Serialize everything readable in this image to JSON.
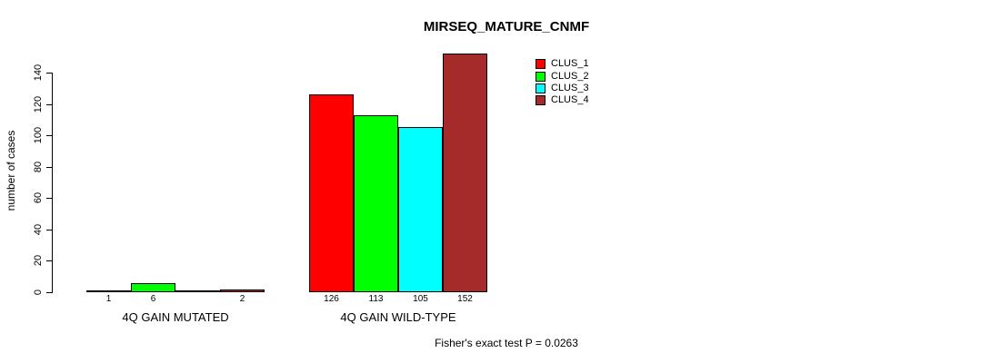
{
  "chart_data": {
    "type": "bar",
    "title": "MIRSEQ_MATURE_CNMF",
    "ylabel": "number of cases",
    "xlabel": "",
    "ylim": [
      0,
      140
    ],
    "yticks": [
      0,
      20,
      40,
      60,
      80,
      100,
      120,
      140
    ],
    "grid": false,
    "legend_position": "top-right",
    "categories": [
      "4Q GAIN MUTATED",
      "4Q GAIN WILD-TYPE"
    ],
    "series": [
      {
        "name": "CLUS_1",
        "color": "#FF0000",
        "values": [
          1,
          126
        ]
      },
      {
        "name": "CLUS_2",
        "color": "#00FF00",
        "values": [
          6,
          113
        ]
      },
      {
        "name": "CLUS_3",
        "color": "#00FFFF",
        "values": [
          0,
          105
        ]
      },
      {
        "name": "CLUS_4",
        "color": "#A52A2A",
        "values": [
          2,
          152
        ]
      }
    ],
    "groups": [
      {
        "label": "4Q GAIN MUTATED",
        "values": [
          1,
          6,
          0,
          2
        ],
        "bar_labels": [
          "1",
          "6",
          "",
          "2"
        ]
      },
      {
        "label": "4Q GAIN WILD-TYPE",
        "values": [
          126,
          113,
          105,
          152
        ],
        "bar_labels": [
          "126",
          "113",
          "105",
          "152"
        ]
      }
    ],
    "annotation": "Fisher's exact test P = 0.0263"
  }
}
